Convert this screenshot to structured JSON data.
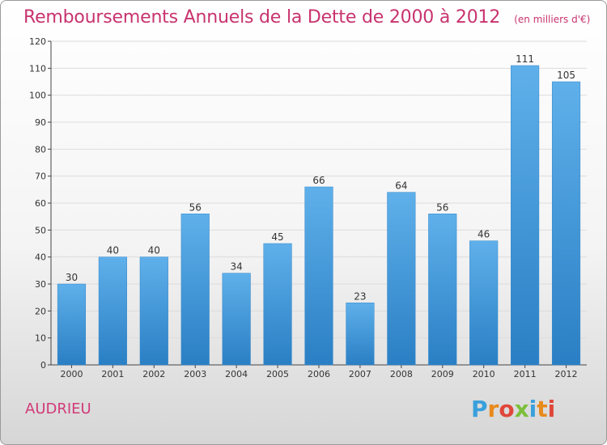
{
  "header": {
    "title": "Remboursements Annuels de la Dette de 2000 à 2012",
    "subtitle": "(en milliers d'€)"
  },
  "commune": "AUDRIEU",
  "brand": {
    "letters": [
      "P",
      "r",
      "o",
      "x",
      "i",
      "t",
      "i"
    ],
    "colors": [
      "#3aa0dc",
      "#e88a1c",
      "#e0473a",
      "#7cbf3a"
    ]
  },
  "chart_data": {
    "type": "bar",
    "title": "Remboursements Annuels de la Dette de 2000 à 2012",
    "subtitle": "(en milliers d'€)",
    "xlabel": "",
    "ylabel": "",
    "categories": [
      "2000",
      "2001",
      "2002",
      "2003",
      "2004",
      "2005",
      "2006",
      "2007",
      "2008",
      "2009",
      "2010",
      "2011",
      "2012"
    ],
    "values": [
      30,
      40,
      40,
      56,
      34,
      45,
      66,
      23,
      64,
      56,
      46,
      111,
      105
    ],
    "ylim": [
      0,
      120
    ],
    "yticks": [
      0,
      10,
      20,
      30,
      40,
      50,
      60,
      70,
      80,
      90,
      100,
      110,
      120
    ],
    "grid": true,
    "bar_color": "#3d93d6",
    "legend": "none"
  }
}
